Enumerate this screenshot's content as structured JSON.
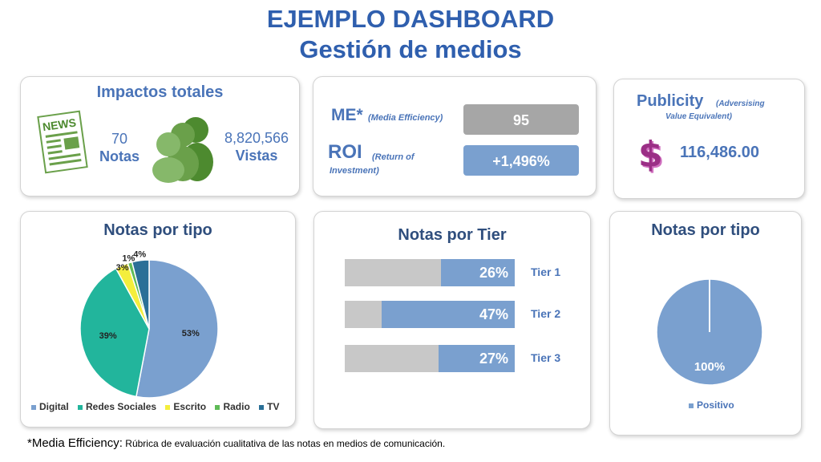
{
  "header": {
    "title": "EJEMPLO DASHBOARD",
    "subtitle": "Gestión de medios"
  },
  "impactos": {
    "title": "Impactos totales",
    "icon_news_text": "NEWS",
    "notas_value": "70",
    "notas_label": "Notas",
    "vistas_value": "8,820,566",
    "vistas_label": "Vistas"
  },
  "metrics": {
    "me_label": "ME*",
    "me_desc": "(Media Efficiency)",
    "me_value": "95",
    "roi_label": "ROI",
    "roi_desc_1": "(Return of",
    "roi_desc_2": "Investment)",
    "roi_value": "+1,496%"
  },
  "publicity": {
    "title": "Publicity",
    "desc_1": "(Adversising",
    "desc_2": "Value Equivalent)",
    "value": "116,486.00",
    "icon_symbol": "$"
  },
  "footnote": {
    "lead": "*Media Efficiency:",
    "text": " Rúbrica de evaluación cualitativa de las notas en medios de comunicación."
  },
  "colors": {
    "accent": "#2f5fae",
    "digital": "#7aa0cf",
    "redes": "#22b59c",
    "escrito": "#f4ee3c",
    "radio": "#5fbb57",
    "tv": "#2a6f97",
    "gray": "#c8c8c8"
  },
  "chart_data": [
    {
      "type": "pie",
      "title": "Notas por tipo",
      "categories": [
        "Digital",
        "Redes Sociales",
        "Escrito",
        "Radio",
        "TV"
      ],
      "values": [
        53,
        39,
        3,
        1,
        4
      ],
      "labels": [
        "53%",
        "39%",
        "3%",
        "1%",
        "4%"
      ],
      "legend": "bottom"
    },
    {
      "type": "bar",
      "orientation": "horizontal",
      "title": "Notas por Tier",
      "categories": [
        "Tier 1",
        "Tier 2",
        "Tier 3"
      ],
      "values": [
        26,
        47,
        27
      ],
      "labels": [
        "26%",
        "47%",
        "27%"
      ],
      "xlim": [
        0,
        60
      ]
    },
    {
      "type": "pie",
      "title": "Notas por tipo",
      "categories": [
        "Positivo"
      ],
      "values": [
        100
      ],
      "labels": [
        "100%"
      ],
      "legend": "bottom"
    }
  ]
}
